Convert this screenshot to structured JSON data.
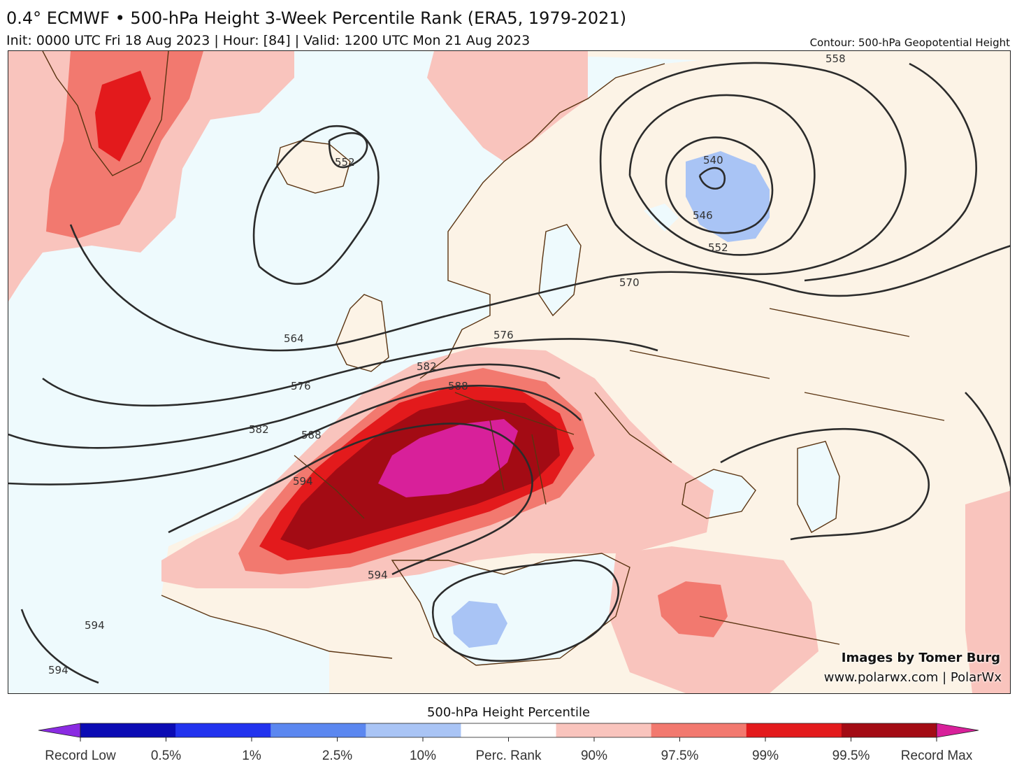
{
  "header": {
    "title": "0.4° ECMWF • 500-hPa Height 3-Week Percentile Rank (ERA5, 1979-2021)",
    "subtitle": "Init: 0000 UTC Fri 18 Aug 2023 | Hour: [84] | Valid: 1200 UTC Mon 21 Aug 2023",
    "contour_note": "Contour: 500-hPa Geopotential Height"
  },
  "contour_labels": [
    "552",
    "540",
    "546",
    "552",
    "558",
    "570",
    "564",
    "576",
    "576",
    "582",
    "582",
    "588",
    "588",
    "594",
    "594",
    "594",
    "594"
  ],
  "credits": {
    "line1": "Images by Tomer Burg",
    "line2": "www.polarwx.com | PolarWx"
  },
  "colorbar": {
    "title": "500-hPa Height Percentile",
    "colors": [
      "#8a2be2",
      "#0b0bb4",
      "#2233ee",
      "#5b87f0",
      "#a9c4f5",
      "#ffffff",
      "#f9c4bd",
      "#f2796f",
      "#e31a1c",
      "#a30b14",
      "#d8209a"
    ],
    "labels": [
      "Record Low",
      "0.5%",
      "1%",
      "2.5%",
      "10%",
      "Perc. Rank",
      "90%",
      "97.5%",
      "99%",
      "99.5%",
      "Record Max"
    ]
  },
  "colors": {
    "ocean": "#eefafd",
    "land": "#fcf3e6",
    "rank90": "#f9c4bd",
    "rank975": "#f2796f",
    "rank99": "#e31a1c",
    "rank995": "#a30b14",
    "record_max": "#d8209a",
    "rank10": "#a9c4f5",
    "coast": "#5a3412",
    "contour": "#2b2b2b"
  }
}
